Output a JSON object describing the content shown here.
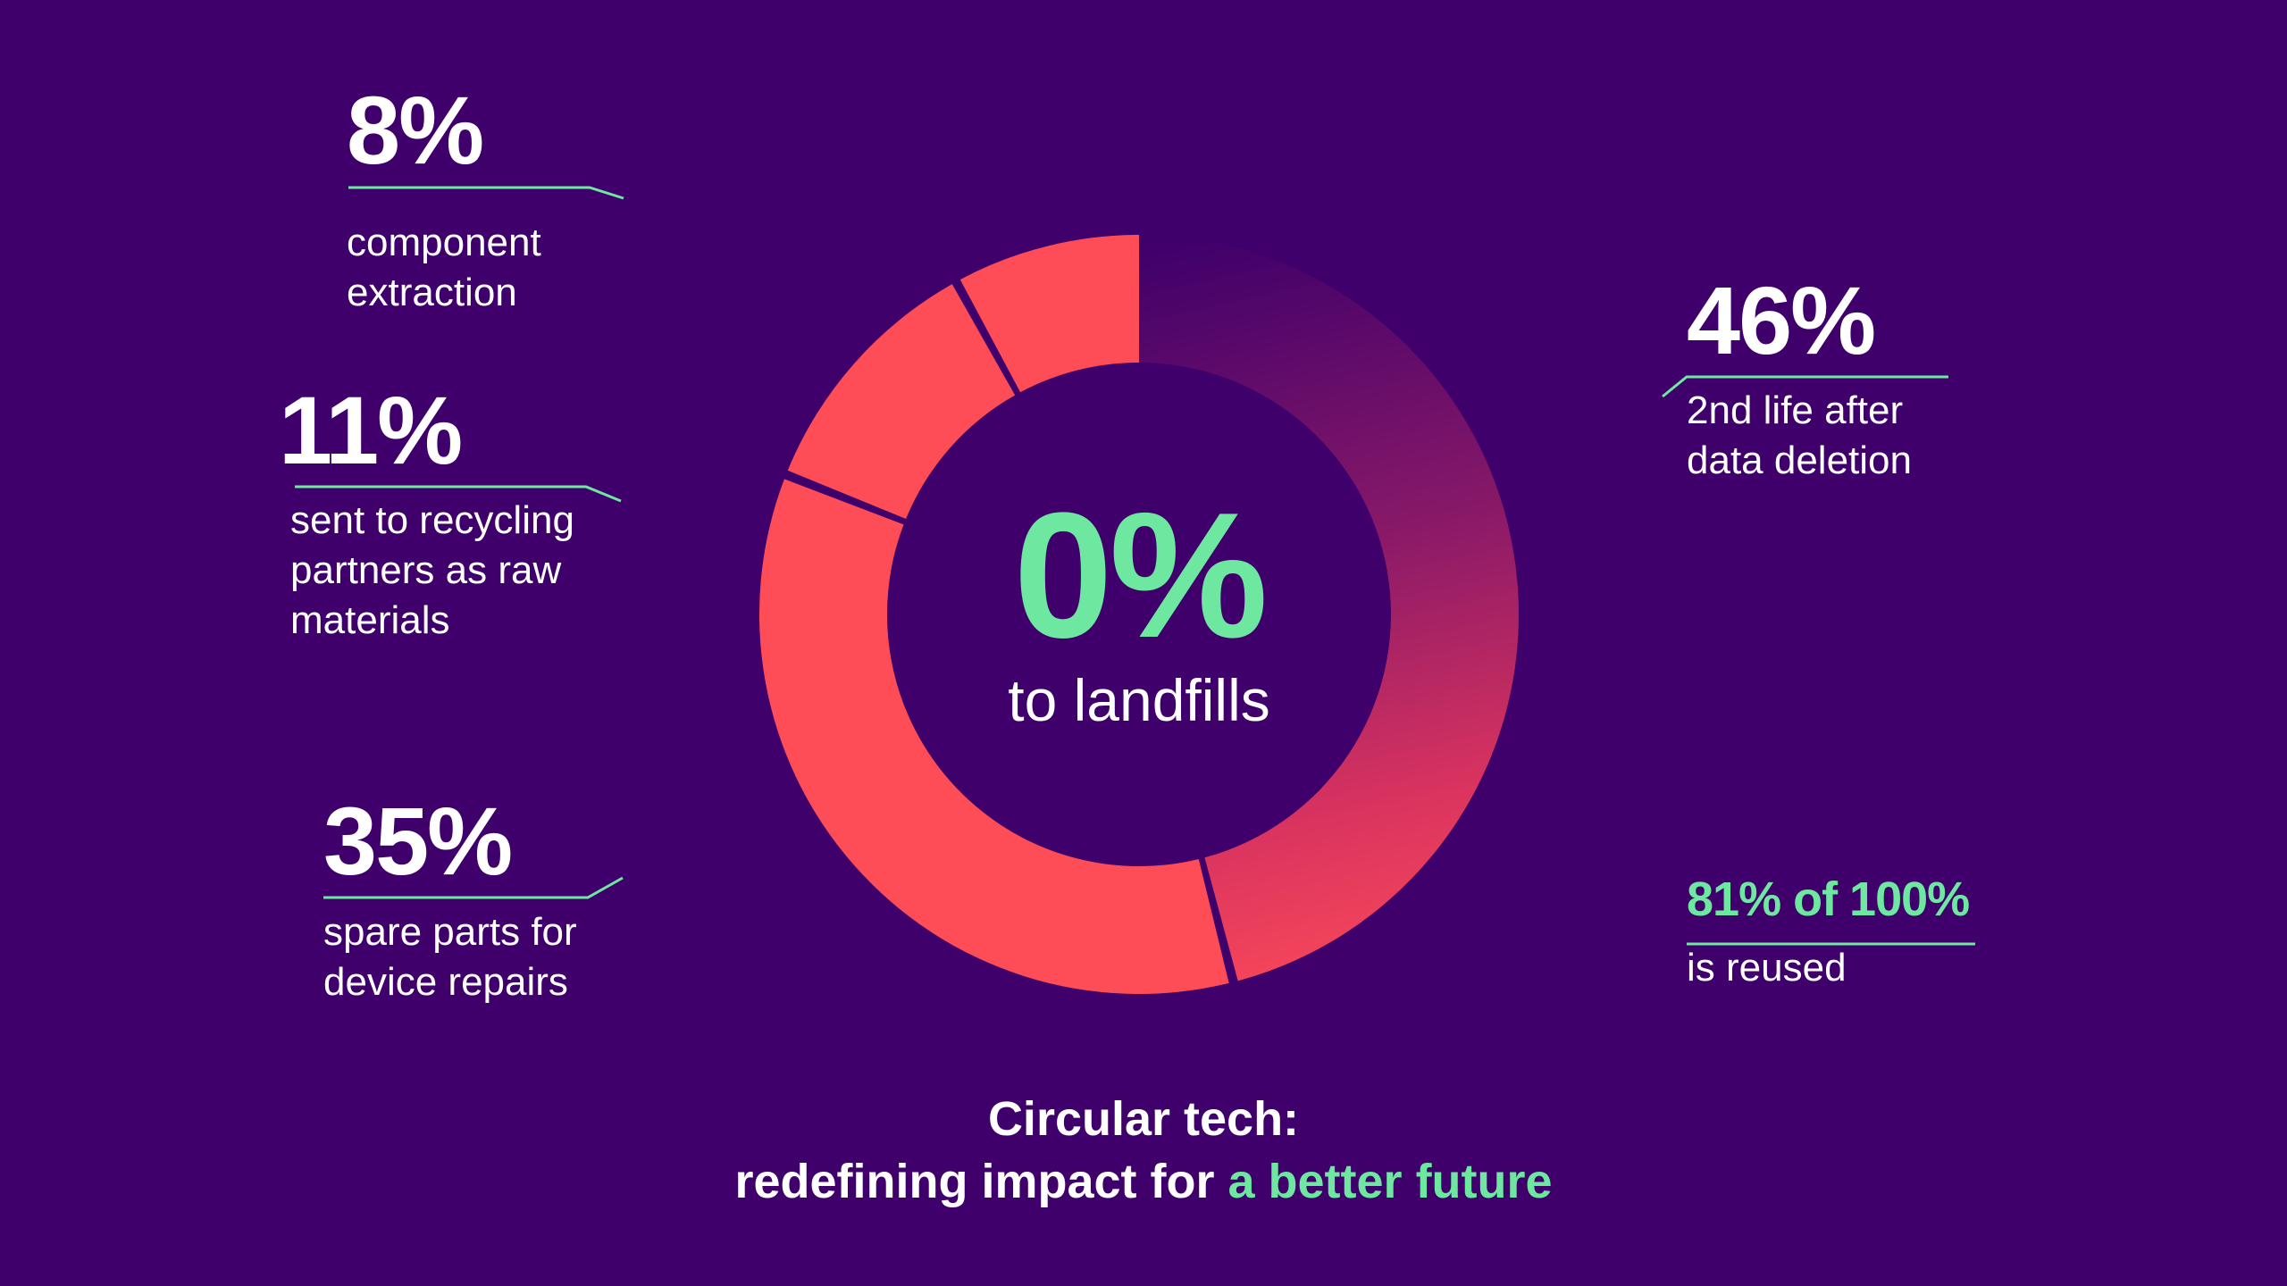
{
  "center": {
    "value": "0%",
    "label": "to landfills"
  },
  "stats": {
    "component": {
      "value": "8%",
      "label_line1": "component",
      "label_line2": "extraction"
    },
    "recycling": {
      "value": "11%",
      "label_line1": "sent to recycling",
      "label_line2": "partners as raw",
      "label_line3": "materials"
    },
    "spare": {
      "value": "35%",
      "label_line1": "spare parts for",
      "label_line2": "device repairs"
    },
    "second_life": {
      "value": "46%",
      "label_line1": "2nd life after",
      "label_line2": "data deletion"
    },
    "reuse": {
      "value": "81% of 100%",
      "label": "is reused"
    }
  },
  "footer": {
    "line1": "Circular tech:",
    "line2_plain": "redefining impact for ",
    "line2_accent": "a better future"
  },
  "colors": {
    "background": "#3f006b",
    "coral": "#ff4d57",
    "accent_green": "#6ee7a0",
    "text": "#ffffff"
  },
  "chart_data": {
    "type": "pie",
    "variant": "donut",
    "title": "Circular tech: redefining impact for a better future",
    "center_annotation": "0% to landfills",
    "categories": [
      "2nd life after data deletion",
      "spare parts for device repairs",
      "sent to recycling partners as raw materials",
      "component extraction"
    ],
    "values": [
      46,
      35,
      11,
      8
    ],
    "units": "%",
    "start_angle": "12 o'clock, clockwise",
    "annotations": [
      "81% of 100% is reused",
      "0% to landfills"
    ],
    "legend": "none (callout labels)"
  }
}
